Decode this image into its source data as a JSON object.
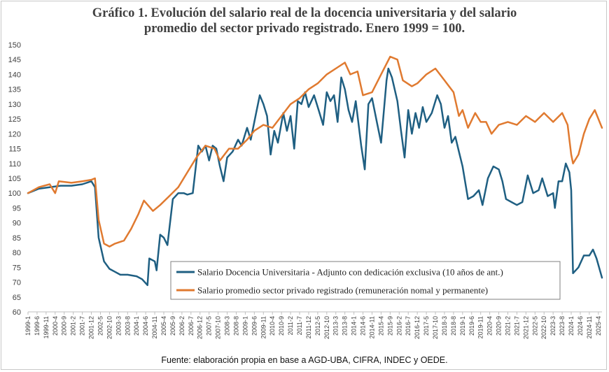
{
  "chart_data": {
    "type": "line",
    "title_line1": "Gráfico 1. Evolución del salario real de la docencia universitaria y del salario",
    "title_line2": "promedio del sector privado registrado. Enero 1999 = 100.",
    "source": "Fuente:  elaboración propia en base a AGD-UBA,  CIFRA,  INDEC y OEDE.",
    "xlabel": "",
    "ylabel": "",
    "ylim": [
      60,
      150
    ],
    "yticks": [
      60,
      65,
      70,
      75,
      80,
      85,
      90,
      95,
      100,
      105,
      110,
      115,
      120,
      125,
      130,
      135,
      140,
      145,
      150
    ],
    "x_start": "1999-1",
    "x_end": "2025-6",
    "x_tick_labels": [
      "1999-1",
      "1999-6",
      "1999-11",
      "2000-4",
      "2000-9",
      "2001-2",
      "2001-7",
      "2001-12",
      "2002-5",
      "2002-10",
      "2003-3",
      "2003-8",
      "2004-1",
      "2004-6",
      "2004-11",
      "2005-4",
      "2005-9",
      "2006-2",
      "2006-7",
      "2006-12",
      "2007-5",
      "2007-10",
      "2008-3",
      "2008-8",
      "2009-1",
      "2009-6",
      "2009-11",
      "2010-4",
      "2010-9",
      "2011-2",
      "2011-7",
      "2011-12",
      "2012-5",
      "2012-10",
      "2013-3",
      "2013-8",
      "2014-1",
      "2014-6",
      "2014-11",
      "2015-4",
      "2015-9",
      "2016-2",
      "2016-7",
      "2016-12",
      "2017-5",
      "2017-10",
      "2018-3",
      "2018-8",
      "2019-1",
      "2019-6",
      "2019-11",
      "2020-4",
      "2020-9",
      "2021-2",
      "2021-7",
      "2021-12",
      "2022-5",
      "2022-10",
      "2023-3",
      "2023-8",
      "2024-1",
      "2024-6",
      "2024-11",
      "2025-4"
    ],
    "legend_position": "bottom-right",
    "grid": false,
    "series": [
      {
        "name": "Salario Docencia Universitaria - Adjunto con dedicación exclusiva (10 años de ant.)",
        "color": "#1f5f82",
        "points": [
          [
            "1999-1",
            100
          ],
          [
            "1999-7",
            101.5
          ],
          [
            "2000-1",
            102
          ],
          [
            "2000-7",
            102.5
          ],
          [
            "2001-1",
            102.5
          ],
          [
            "2001-7",
            103
          ],
          [
            "2001-12",
            104
          ],
          [
            "2002-2",
            102
          ],
          [
            "2002-4",
            85
          ],
          [
            "2002-7",
            77
          ],
          [
            "2002-10",
            74.5
          ],
          [
            "2003-1",
            73.5
          ],
          [
            "2003-4",
            72.5
          ],
          [
            "2003-8",
            72.5
          ],
          [
            "2004-1",
            72
          ],
          [
            "2004-4",
            71
          ],
          [
            "2004-7",
            69
          ],
          [
            "2004-8",
            78
          ],
          [
            "2004-11",
            77
          ],
          [
            "2004-12",
            74
          ],
          [
            "2005-2",
            86
          ],
          [
            "2005-4",
            85
          ],
          [
            "2005-6",
            82.5
          ],
          [
            "2005-9",
            98
          ],
          [
            "2005-12",
            100
          ],
          [
            "2006-3",
            100
          ],
          [
            "2006-5",
            99.5
          ],
          [
            "2006-8",
            100
          ],
          [
            "2006-11",
            116
          ],
          [
            "2007-1",
            114
          ],
          [
            "2007-3",
            116
          ],
          [
            "2007-5",
            111
          ],
          [
            "2007-7",
            116
          ],
          [
            "2007-9",
            115
          ],
          [
            "2007-11",
            109
          ],
          [
            "2008-1",
            104
          ],
          [
            "2008-3",
            112
          ],
          [
            "2008-6",
            114
          ],
          [
            "2008-9",
            118
          ],
          [
            "2008-11",
            116
          ],
          [
            "2009-2",
            122
          ],
          [
            "2009-4",
            118
          ],
          [
            "2009-7",
            127
          ],
          [
            "2009-9",
            133
          ],
          [
            "2009-11",
            130
          ],
          [
            "2010-1",
            126
          ],
          [
            "2010-3",
            113
          ],
          [
            "2010-5",
            121
          ],
          [
            "2010-7",
            117
          ],
          [
            "2010-10",
            127
          ],
          [
            "2010-12",
            121
          ],
          [
            "2011-2",
            126
          ],
          [
            "2011-4",
            115
          ],
          [
            "2011-6",
            131
          ],
          [
            "2011-8",
            130
          ],
          [
            "2011-10",
            134
          ],
          [
            "2011-12",
            129
          ],
          [
            "2012-3",
            133
          ],
          [
            "2012-6",
            127
          ],
          [
            "2012-8",
            123
          ],
          [
            "2012-10",
            134
          ],
          [
            "2012-12",
            131
          ],
          [
            "2013-2",
            133
          ],
          [
            "2013-4",
            124
          ],
          [
            "2013-6",
            139
          ],
          [
            "2013-8",
            135
          ],
          [
            "2013-10",
            128
          ],
          [
            "2013-12",
            124
          ],
          [
            "2014-2",
            131
          ],
          [
            "2014-5",
            116
          ],
          [
            "2014-7",
            108
          ],
          [
            "2014-9",
            130
          ],
          [
            "2014-11",
            132
          ],
          [
            "2015-2",
            123
          ],
          [
            "2015-4",
            117
          ],
          [
            "2015-7",
            138
          ],
          [
            "2015-8",
            142
          ],
          [
            "2015-10",
            139
          ],
          [
            "2016-1",
            131
          ],
          [
            "2016-3",
            121
          ],
          [
            "2016-5",
            112
          ],
          [
            "2016-7",
            128
          ],
          [
            "2016-9",
            120
          ],
          [
            "2016-11",
            127
          ],
          [
            "2017-1",
            122
          ],
          [
            "2017-3",
            129
          ],
          [
            "2017-5",
            124
          ],
          [
            "2017-8",
            127
          ],
          [
            "2017-11",
            133
          ],
          [
            "2018-1",
            130
          ],
          [
            "2018-3",
            122
          ],
          [
            "2018-5",
            126
          ],
          [
            "2018-7",
            117
          ],
          [
            "2018-9",
            119
          ],
          [
            "2018-11",
            114
          ],
          [
            "2019-1",
            109
          ],
          [
            "2019-4",
            98
          ],
          [
            "2019-7",
            99
          ],
          [
            "2019-10",
            101
          ],
          [
            "2019-12",
            96
          ],
          [
            "2020-3",
            105
          ],
          [
            "2020-6",
            109
          ],
          [
            "2020-9",
            108
          ],
          [
            "2020-11",
            104
          ],
          [
            "2021-1",
            98
          ],
          [
            "2021-4",
            97
          ],
          [
            "2021-7",
            96
          ],
          [
            "2021-10",
            97
          ],
          [
            "2022-1",
            106
          ],
          [
            "2022-4",
            100
          ],
          [
            "2022-7",
            101
          ],
          [
            "2022-9",
            105
          ],
          [
            "2022-12",
            99
          ],
          [
            "2023-3",
            100
          ],
          [
            "2023-4",
            95
          ],
          [
            "2023-6",
            104
          ],
          [
            "2023-8",
            104
          ],
          [
            "2023-10",
            110
          ],
          [
            "2023-12",
            107
          ],
          [
            "2024-1",
            101
          ],
          [
            "2024-2",
            73
          ],
          [
            "2024-5",
            75
          ],
          [
            "2024-8",
            79
          ],
          [
            "2024-11",
            79
          ],
          [
            "2025-1",
            81
          ],
          [
            "2025-3",
            78
          ],
          [
            "2025-6",
            71.5
          ]
        ]
      },
      {
        "name": "Salario promedio sector privado registrado (remuneración nomal y permanente)",
        "color": "#e07a30",
        "points": [
          [
            "1999-1",
            100
          ],
          [
            "1999-7",
            102
          ],
          [
            "2000-1",
            103
          ],
          [
            "2000-4",
            100
          ],
          [
            "2000-6",
            104
          ],
          [
            "2001-1",
            103.5
          ],
          [
            "2001-7",
            104
          ],
          [
            "2001-12",
            104.5
          ],
          [
            "2002-2",
            105
          ],
          [
            "2002-4",
            91
          ],
          [
            "2002-7",
            83
          ],
          [
            "2002-10",
            82
          ],
          [
            "2003-1",
            83
          ],
          [
            "2003-6",
            84
          ],
          [
            "2003-10",
            88
          ],
          [
            "2004-2",
            93
          ],
          [
            "2004-5",
            97.5
          ],
          [
            "2004-10",
            94
          ],
          [
            "2005-2",
            96
          ],
          [
            "2005-7",
            99
          ],
          [
            "2005-12",
            102
          ],
          [
            "2006-5",
            107
          ],
          [
            "2006-10",
            112
          ],
          [
            "2007-3",
            116
          ],
          [
            "2007-8",
            115
          ],
          [
            "2007-11",
            111
          ],
          [
            "2008-4",
            115
          ],
          [
            "2008-9",
            115
          ],
          [
            "2009-2",
            118
          ],
          [
            "2009-6",
            121
          ],
          [
            "2009-11",
            123
          ],
          [
            "2010-4",
            122
          ],
          [
            "2010-9",
            126
          ],
          [
            "2011-2",
            130
          ],
          [
            "2011-7",
            132
          ],
          [
            "2011-12",
            135
          ],
          [
            "2012-5",
            137
          ],
          [
            "2012-10",
            140
          ],
          [
            "2013-3",
            142
          ],
          [
            "2013-8",
            144
          ],
          [
            "2013-11",
            140
          ],
          [
            "2014-3",
            141
          ],
          [
            "2014-6",
            133
          ],
          [
            "2014-11",
            134
          ],
          [
            "2015-4",
            140
          ],
          [
            "2015-9",
            146
          ],
          [
            "2016-1",
            145
          ],
          [
            "2016-4",
            138
          ],
          [
            "2016-9",
            136
          ],
          [
            "2016-12",
            137
          ],
          [
            "2017-5",
            140
          ],
          [
            "2017-10",
            142
          ],
          [
            "2018-3",
            138
          ],
          [
            "2018-8",
            134
          ],
          [
            "2018-11",
            126
          ],
          [
            "2019-1",
            128
          ],
          [
            "2019-4",
            122
          ],
          [
            "2019-8",
            127
          ],
          [
            "2019-11",
            124
          ],
          [
            "2020-2",
            124
          ],
          [
            "2020-5",
            120
          ],
          [
            "2020-9",
            123
          ],
          [
            "2021-2",
            124
          ],
          [
            "2021-7",
            123
          ],
          [
            "2021-12",
            126
          ],
          [
            "2022-5",
            124
          ],
          [
            "2022-10",
            127
          ],
          [
            "2023-3",
            124
          ],
          [
            "2023-8",
            127
          ],
          [
            "2023-11",
            123
          ],
          [
            "2024-1",
            113
          ],
          [
            "2024-2",
            110
          ],
          [
            "2024-5",
            113
          ],
          [
            "2024-8",
            120
          ],
          [
            "2024-11",
            125
          ],
          [
            "2025-2",
            128
          ],
          [
            "2025-6",
            122
          ]
        ]
      }
    ]
  }
}
